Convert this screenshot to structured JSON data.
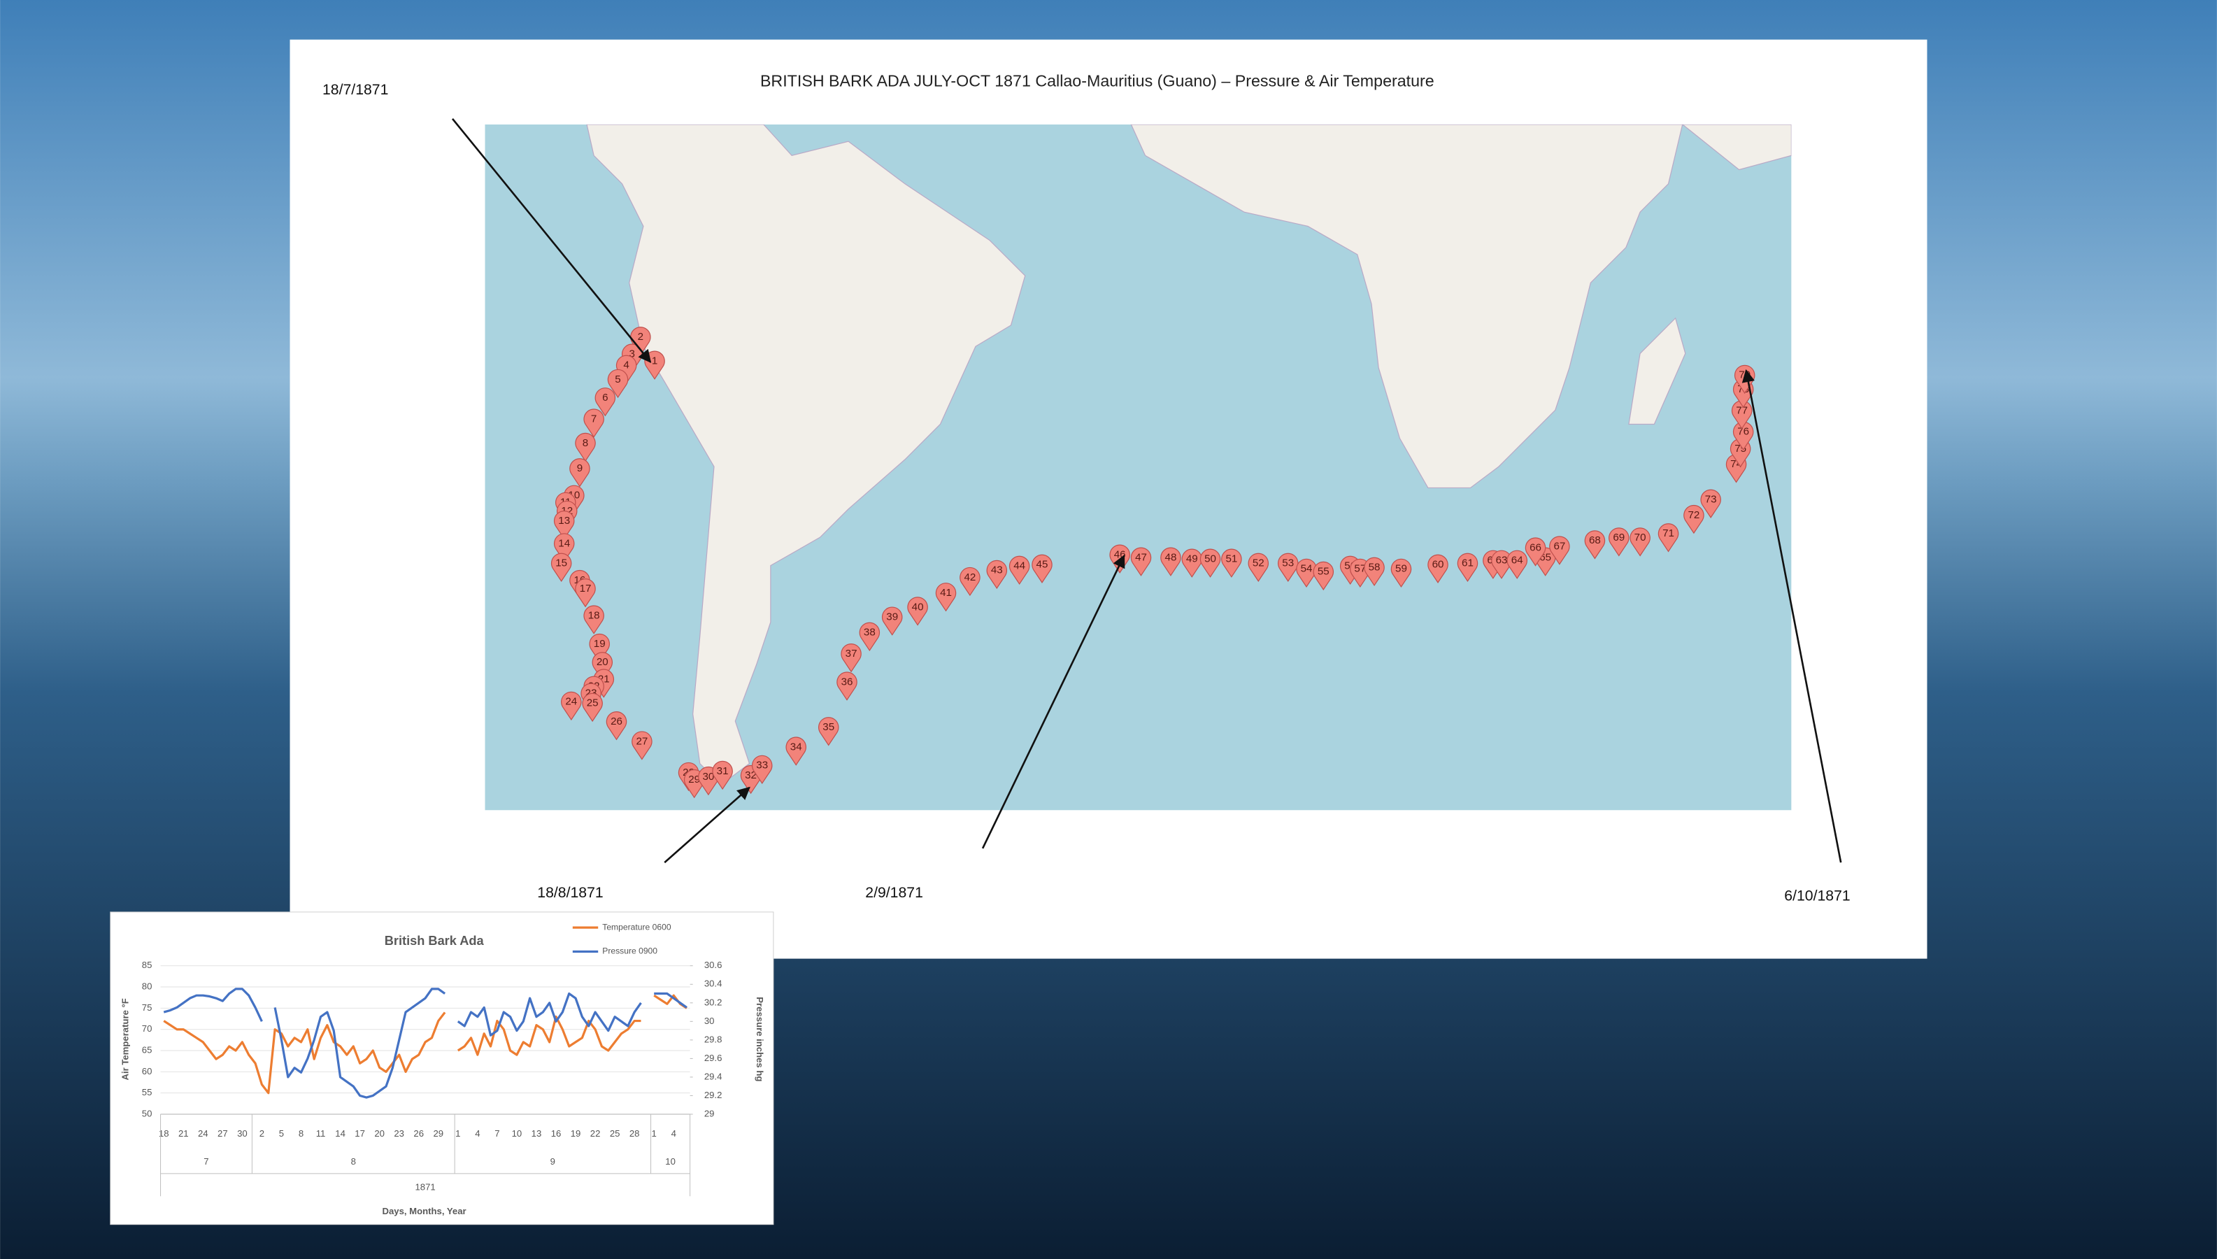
{
  "title": "BRITISH BARK ADA  JULY-OCT 1871  Callao-Mauritius (Guano) – Pressure & Air Temperature",
  "annotations": [
    "18/7/1871",
    "18/8/1871",
    "2/9/1871",
    "6/10/1871"
  ],
  "map": {
    "markers": [
      "1",
      "2",
      "3",
      "4",
      "5",
      "6",
      "7",
      "8",
      "9",
      "10",
      "11",
      "12",
      "13",
      "14",
      "15",
      "16",
      "17",
      "18",
      "19",
      "20",
      "21",
      "22",
      "23",
      "24",
      "25",
      "26",
      "27",
      "28",
      "29",
      "30",
      "31",
      "32",
      "33",
      "34",
      "35",
      "36",
      "37",
      "38",
      "39",
      "40",
      "41",
      "42",
      "43",
      "44",
      "45",
      "46",
      "47",
      "48",
      "49",
      "50",
      "51",
      "52",
      "53",
      "54",
      "55",
      "56",
      "57",
      "58",
      "59",
      "60",
      "61",
      "62",
      "63",
      "64",
      "65",
      "66",
      "67",
      "68",
      "69",
      "70",
      "71",
      "72",
      "73",
      "74",
      "75",
      "76",
      "77",
      "78",
      "79"
    ]
  },
  "chart_data": {
    "type": "line",
    "title": "British Bark Ada",
    "x_label": "Days, Months, Year",
    "y_label": "Air Temperature °F",
    "y2_label": "Pressure inches hg",
    "categories": [
      "18",
      null,
      null,
      "21",
      null,
      null,
      "24",
      null,
      null,
      "27",
      null,
      null,
      "30",
      null,
      null,
      "2",
      null,
      null,
      "5",
      null,
      null,
      "8",
      null,
      null,
      "11",
      null,
      null,
      "14",
      null,
      null,
      "17",
      null,
      null,
      "20",
      null,
      null,
      "23",
      null,
      null,
      "26",
      null,
      null,
      "29",
      null,
      null,
      "1",
      null,
      null,
      "4",
      null,
      null,
      "7",
      null,
      null,
      "10",
      null,
      null,
      "13",
      null,
      null,
      "16",
      null,
      null,
      "19",
      null,
      null,
      "22",
      null,
      null,
      "25",
      null,
      null,
      "28",
      null,
      null,
      "1",
      null,
      null,
      "4",
      null,
      null
    ],
    "month_labels": [
      "7",
      "8",
      "9",
      "10"
    ],
    "year_label": "1871",
    "series": [
      {
        "name": "Temperature 0600",
        "color": "#ed7d31",
        "values": [
          72,
          71,
          70,
          70,
          69,
          68,
          67,
          65,
          63,
          64,
          66,
          65,
          67,
          64,
          62,
          57,
          55,
          70,
          69,
          66,
          68,
          67,
          70,
          63,
          68,
          71,
          67,
          66,
          64,
          66,
          62,
          63,
          65,
          61,
          60,
          62,
          64,
          60,
          63,
          64,
          67,
          68,
          72,
          74,
          null,
          65,
          66,
          68,
          64,
          69,
          66,
          72,
          70,
          65,
          64,
          67,
          66,
          71,
          70,
          67,
          73,
          70,
          66,
          67,
          68,
          72,
          70,
          66,
          65,
          67,
          69,
          70,
          72,
          72,
          null,
          78,
          77,
          76,
          78,
          76,
          75
        ]
      },
      {
        "name": "Pressure 0900",
        "color": "#4472c4",
        "axis": "y2",
        "values": [
          30.1,
          30.12,
          30.15,
          30.2,
          30.25,
          30.28,
          30.28,
          30.27,
          30.25,
          30.22,
          30.3,
          30.35,
          30.35,
          30.28,
          30.15,
          30.0,
          null,
          30.15,
          29.8,
          29.4,
          29.5,
          29.45,
          29.6,
          29.8,
          30.05,
          30.1,
          29.9,
          29.4,
          29.35,
          29.3,
          29.2,
          29.18,
          29.2,
          29.25,
          29.3,
          29.5,
          29.8,
          30.1,
          30.15,
          30.2,
          30.25,
          30.35,
          30.35,
          30.3,
          null,
          30.0,
          29.95,
          30.1,
          30.05,
          30.15,
          29.85,
          29.9,
          30.1,
          30.05,
          29.9,
          30.0,
          30.25,
          30.05,
          30.1,
          30.2,
          30.0,
          30.1,
          30.3,
          30.25,
          30.05,
          29.95,
          30.1,
          30.0,
          29.9,
          30.05,
          30.0,
          29.95,
          30.1,
          30.2,
          null,
          30.3,
          30.3,
          30.3,
          30.25,
          30.2,
          30.15
        ]
      }
    ],
    "ylim": [
      50,
      85
    ],
    "yticks": [
      50,
      55,
      60,
      65,
      70,
      75,
      80,
      85
    ],
    "y2lim": [
      29,
      30.6
    ],
    "y2ticks": [
      29,
      29.2,
      29.4,
      29.6,
      29.8,
      30,
      30.2,
      30.4,
      30.6
    ],
    "grid": true,
    "legend": "top-right"
  }
}
